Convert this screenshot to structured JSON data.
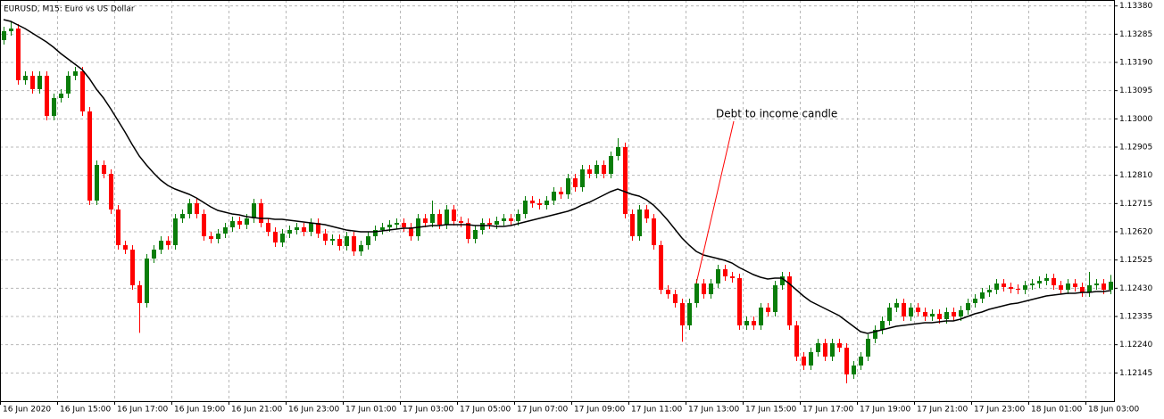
{
  "chart_data": {
    "type": "candlestick",
    "title": "EURUSD, M15:  Euro vs US Dollar",
    "annotation": "Debt to income candle",
    "up_color": "#0a7d0a",
    "down_color": "#ff0000",
    "grid": true,
    "ylim": [
      1.1205,
      1.134
    ],
    "yticks": [
      {
        "value": 1.1338,
        "label": "1.13380"
      },
      1.13285,
      {
        "value": 1.1319,
        "label": "1.13190"
      },
      1.13095,
      {
        "value": 1.13,
        "label": "1.13000"
      },
      1.12905,
      {
        "value": 1.1281,
        "label": "1.12810"
      },
      1.12715,
      {
        "value": 1.1262,
        "label": "1.12620"
      },
      1.12525,
      {
        "value": 1.1243,
        "label": "1.12430"
      },
      1.12335,
      {
        "value": 1.1224,
        "label": "1.12240"
      },
      1.12145
    ],
    "categories": [
      "16 Jun 2020",
      null,
      null,
      null,
      null,
      null,
      null,
      null,
      "16 Jun 15:00",
      null,
      null,
      null,
      null,
      null,
      null,
      null,
      "16 Jun 17:00",
      null,
      null,
      null,
      null,
      null,
      null,
      null,
      "16 Jun 19:00",
      null,
      null,
      null,
      null,
      null,
      null,
      null,
      "16 Jun 21:00",
      null,
      null,
      null,
      null,
      null,
      null,
      null,
      "16 Jun 23:00",
      null,
      null,
      null,
      null,
      null,
      null,
      null,
      "17 Jun 01:00",
      null,
      null,
      null,
      null,
      null,
      null,
      null,
      "17 Jun 03:00",
      null,
      null,
      null,
      null,
      null,
      null,
      null,
      "17 Jun 05:00",
      null,
      null,
      null,
      null,
      null,
      null,
      null,
      "17 Jun 07:00",
      null,
      null,
      null,
      null,
      null,
      null,
      null,
      "17 Jun 09:00",
      null,
      null,
      null,
      null,
      null,
      null,
      null,
      "17 Jun 11:00",
      null,
      null,
      null,
      null,
      null,
      null,
      null,
      "17 Jun 13:00",
      null,
      null,
      null,
      null,
      null,
      null,
      null,
      "17 Jun 15:00",
      null,
      null,
      null,
      null,
      null,
      null,
      null,
      "17 Jun 17:00",
      null,
      null,
      null,
      null,
      null,
      null,
      null,
      "17 Jun 19:00",
      null,
      null,
      null,
      null,
      null,
      null,
      null,
      "17 Jun 21:00",
      null,
      null,
      null,
      null,
      null,
      null,
      null,
      "17 Jun 23:00",
      null,
      null,
      null,
      null,
      null,
      null,
      null,
      "18 Jun 01:00",
      null,
      null,
      null,
      null,
      null,
      null,
      null,
      "18 Jun 03:00",
      null,
      null,
      null
    ],
    "open": [
      1.13265,
      1.13295,
      1.13304,
      1.1313,
      1.13145,
      1.131,
      1.13145,
      1.1301,
      1.1307,
      1.13085,
      1.13145,
      1.1316,
      1.13025,
      1.12725,
      1.12845,
      1.12815,
      1.12695,
      1.12575,
      1.1256,
      1.1244,
      1.1238,
      1.1253,
      1.1256,
      1.1259,
      1.12575,
      1.12665,
      1.1268,
      1.12716,
      1.1268,
      1.12605,
      1.12596,
      1.12614,
      1.12635,
      1.12656,
      1.12644,
      1.12665,
      1.12716,
      1.1265,
      1.1262,
      1.12584,
      1.12614,
      1.12626,
      1.12635,
      1.1262,
      1.1265,
      1.12614,
      1.1259,
      1.12596,
      1.12572,
      1.12605,
      1.12554,
      1.12575,
      1.12605,
      1.12626,
      1.12635,
      1.12644,
      1.1265,
      1.12635,
      1.12605,
      1.12665,
      1.1265,
      1.1268,
      1.12644,
      1.12695,
      1.12656,
      1.1265,
      1.12596,
      1.12626,
      1.1265,
      1.12644,
      1.12656,
      1.12665,
      1.12656,
      1.1268,
      1.12725,
      1.12716,
      1.1271,
      1.12725,
      1.12755,
      1.12746,
      1.128,
      1.1277,
      1.1283,
      1.12815,
      1.12845,
      1.12815,
      1.12875,
      1.12905,
      1.1268,
      1.12605,
      1.12695,
      1.12665,
      1.12575,
      1.12425,
      1.1241,
      1.1238,
      1.12305,
      1.1238,
      1.12446,
      1.1241,
      1.12446,
      1.12494,
      1.1247,
      1.12464,
      1.12305,
      1.1232,
      1.12305,
      1.12365,
      1.1235,
      1.1244,
      1.1247,
      1.12305,
      1.122,
      1.1217,
      1.12215,
      1.12245,
      1.122,
      1.12245,
      1.1223,
      1.1214,
      1.1217,
      1.122,
      1.1226,
      1.1229,
      1.1232,
      1.12365,
      1.1238,
      1.12335,
      1.12365,
      1.1235,
      1.12335,
      1.12344,
      1.12326,
      1.1235,
      1.12335,
      1.12356,
      1.1238,
      1.12395,
      1.12416,
      1.12425,
      1.12446,
      1.12434,
      1.12428,
      1.12425,
      1.1244,
      1.12446,
      1.12455,
      1.12464,
      1.1244,
      1.12425,
      1.12446,
      1.12434,
      1.12416,
      1.1244,
      1.12446,
      1.12425
    ],
    "high": [
      1.1331,
      1.1333,
      1.13319,
      1.1316,
      1.1316,
      1.1316,
      1.1316,
      1.13085,
      1.131,
      1.1316,
      1.13175,
      1.13175,
      1.1304,
      1.1286,
      1.1286,
      1.1283,
      1.1271,
      1.1259,
      1.12575,
      1.12455,
      1.12545,
      1.12575,
      1.12605,
      1.12605,
      1.1268,
      1.12695,
      1.12731,
      1.12731,
      1.12695,
      1.1262,
      1.12629,
      1.1265,
      1.12671,
      1.12671,
      1.1268,
      1.12731,
      1.12731,
      1.12665,
      1.12635,
      1.12629,
      1.12641,
      1.1265,
      1.1265,
      1.12665,
      1.12665,
      1.12629,
      1.12611,
      1.12611,
      1.1262,
      1.1262,
      1.1259,
      1.1262,
      1.12641,
      1.1265,
      1.12659,
      1.12665,
      1.12665,
      1.1265,
      1.1268,
      1.1268,
      1.12725,
      1.12695,
      1.1271,
      1.1271,
      1.12671,
      1.12665,
      1.12641,
      1.12665,
      1.12665,
      1.12671,
      1.1268,
      1.1268,
      1.12695,
      1.1274,
      1.1274,
      1.12731,
      1.1274,
      1.1277,
      1.1277,
      1.12815,
      1.12815,
      1.12845,
      1.12845,
      1.1286,
      1.1286,
      1.1289,
      1.12935,
      1.1292,
      1.12695,
      1.1271,
      1.1271,
      1.1268,
      1.1259,
      1.1244,
      1.12425,
      1.12395,
      1.12395,
      1.12461,
      1.12461,
      1.12461,
      1.12509,
      1.12509,
      1.12485,
      1.12479,
      1.12335,
      1.12335,
      1.1238,
      1.1238,
      1.12455,
      1.12485,
      1.12485,
      1.1232,
      1.12215,
      1.1223,
      1.1226,
      1.1226,
      1.1226,
      1.1226,
      1.12245,
      1.12185,
      1.12215,
      1.12275,
      1.12305,
      1.12335,
      1.1238,
      1.12395,
      1.12395,
      1.1238,
      1.1238,
      1.12365,
      1.12359,
      1.12359,
      1.12365,
      1.12365,
      1.12371,
      1.12395,
      1.1241,
      1.12431,
      1.1244,
      1.12461,
      1.12461,
      1.12449,
      1.12443,
      1.12455,
      1.12461,
      1.1247,
      1.12479,
      1.12479,
      1.12455,
      1.12461,
      1.12461,
      1.12449,
      1.12485,
      1.12461,
      1.12461,
      1.12475
    ],
    "low": [
      1.1325,
      1.1328,
      1.13115,
      1.13115,
      1.13085,
      1.13085,
      1.12995,
      1.12995,
      1.13055,
      1.1307,
      1.1313,
      1.1301,
      1.1271,
      1.1271,
      1.128,
      1.1268,
      1.1256,
      1.12545,
      1.12425,
      1.1228,
      1.12365,
      1.12515,
      1.12545,
      1.1256,
      1.1256,
      1.1265,
      1.12665,
      1.12665,
      1.1259,
      1.12581,
      1.12581,
      1.12599,
      1.1262,
      1.12629,
      1.12629,
      1.1265,
      1.12635,
      1.12605,
      1.12569,
      1.12569,
      1.12599,
      1.12611,
      1.12605,
      1.12605,
      1.12599,
      1.12575,
      1.12575,
      1.12557,
      1.12557,
      1.12539,
      1.12539,
      1.1256,
      1.1259,
      1.12611,
      1.1262,
      1.12629,
      1.1262,
      1.1259,
      1.1259,
      1.12635,
      1.12635,
      1.12629,
      1.12629,
      1.12641,
      1.12635,
      1.12581,
      1.12581,
      1.12611,
      1.12629,
      1.12629,
      1.12641,
      1.12641,
      1.12641,
      1.12665,
      1.12701,
      1.12695,
      1.12695,
      1.1271,
      1.12731,
      1.12731,
      1.12755,
      1.12755,
      1.128,
      1.128,
      1.128,
      1.128,
      1.1286,
      1.12665,
      1.1259,
      1.1259,
      1.1265,
      1.1256,
      1.1241,
      1.12395,
      1.12365,
      1.1225,
      1.1229,
      1.12365,
      1.12395,
      1.12395,
      1.12431,
      1.12455,
      1.12449,
      1.1229,
      1.1229,
      1.1229,
      1.1229,
      1.12335,
      1.12335,
      1.12425,
      1.1229,
      1.12185,
      1.12155,
      1.12155,
      1.122,
      1.12185,
      1.12185,
      1.12215,
      1.1211,
      1.12125,
      1.12155,
      1.12185,
      1.12245,
      1.12275,
      1.12305,
      1.1235,
      1.1232,
      1.1232,
      1.12335,
      1.1232,
      1.1232,
      1.12311,
      1.12311,
      1.1232,
      1.1232,
      1.12341,
      1.12365,
      1.1238,
      1.12401,
      1.1241,
      1.12419,
      1.12413,
      1.1241,
      1.1241,
      1.12425,
      1.12431,
      1.1244,
      1.12425,
      1.1241,
      1.1241,
      1.12419,
      1.12401,
      1.12401,
      1.12425,
      1.1241,
      1.1241
    ],
    "close": [
      1.13295,
      1.13304,
      1.1313,
      1.13145,
      1.131,
      1.13145,
      1.1301,
      1.1307,
      1.13085,
      1.13145,
      1.1316,
      1.13025,
      1.12725,
      1.12845,
      1.12815,
      1.12695,
      1.12575,
      1.1256,
      1.1244,
      1.1238,
      1.1253,
      1.1256,
      1.1259,
      1.12575,
      1.12665,
      1.1268,
      1.12716,
      1.1268,
      1.12605,
      1.12596,
      1.12614,
      1.12635,
      1.12656,
      1.12644,
      1.12665,
      1.12716,
      1.1265,
      1.1262,
      1.12584,
      1.12614,
      1.12626,
      1.12635,
      1.1262,
      1.1265,
      1.12614,
      1.1259,
      1.12596,
      1.12572,
      1.12605,
      1.12554,
      1.12575,
      1.12605,
      1.12626,
      1.12635,
      1.12644,
      1.1265,
      1.12635,
      1.12605,
      1.12665,
      1.1265,
      1.1268,
      1.12644,
      1.12695,
      1.12656,
      1.1265,
      1.12596,
      1.12626,
      1.1265,
      1.12644,
      1.12656,
      1.12665,
      1.12656,
      1.1268,
      1.12725,
      1.12716,
      1.1271,
      1.12725,
      1.12755,
      1.12746,
      1.128,
      1.1277,
      1.1283,
      1.12815,
      1.12845,
      1.12815,
      1.12875,
      1.12905,
      1.1268,
      1.12605,
      1.12695,
      1.12665,
      1.12575,
      1.12425,
      1.1241,
      1.1238,
      1.12305,
      1.1238,
      1.12446,
      1.1241,
      1.12446,
      1.12494,
      1.1247,
      1.12464,
      1.12305,
      1.1232,
      1.12305,
      1.12365,
      1.1235,
      1.1244,
      1.1247,
      1.12305,
      1.122,
      1.1217,
      1.12215,
      1.12245,
      1.122,
      1.12245,
      1.1223,
      1.1214,
      1.1217,
      1.122,
      1.1226,
      1.1229,
      1.1232,
      1.12365,
      1.1238,
      1.12335,
      1.12365,
      1.1235,
      1.12335,
      1.12344,
      1.12326,
      1.1235,
      1.12335,
      1.12356,
      1.1238,
      1.12395,
      1.12416,
      1.12425,
      1.12446,
      1.12434,
      1.12428,
      1.12425,
      1.1244,
      1.12446,
      1.12455,
      1.12464,
      1.1244,
      1.12425,
      1.12446,
      1.12434,
      1.12416,
      1.1244,
      1.12446,
      1.12425,
      1.12452
    ],
    "ma": {
      "color": "#000000",
      "values": [
        1.13334,
        1.13328,
        1.13316,
        1.13304,
        1.13289,
        1.13274,
        1.13259,
        1.13241,
        1.1322,
        1.13202,
        1.13184,
        1.13166,
        1.13136,
        1.131,
        1.1307,
        1.13034,
        1.12995,
        1.12956,
        1.12914,
        1.12875,
        1.12845,
        1.12818,
        1.12794,
        1.12776,
        1.12764,
        1.12755,
        1.12746,
        1.12734,
        1.12719,
        1.12704,
        1.12692,
        1.12686,
        1.1268,
        1.12677,
        1.12671,
        1.12668,
        1.12665,
        1.12665,
        1.12662,
        1.12662,
        1.12659,
        1.12656,
        1.12653,
        1.1265,
        1.12647,
        1.12644,
        1.12638,
        1.12632,
        1.12626,
        1.12623,
        1.1262,
        1.1262,
        1.1262,
        1.12623,
        1.12626,
        1.12629,
        1.12632,
        1.12632,
        1.12635,
        1.12638,
        1.12641,
        1.12641,
        1.12644,
        1.12644,
        1.12644,
        1.12644,
        1.12641,
        1.12641,
        1.12641,
        1.12638,
        1.12638,
        1.12641,
        1.12647,
        1.12653,
        1.12659,
        1.12665,
        1.12671,
        1.12677,
        1.12683,
        1.12689,
        1.12698,
        1.1271,
        1.12719,
        1.12731,
        1.12743,
        1.12755,
        1.12764,
        1.12755,
        1.12746,
        1.1274,
        1.12728,
        1.1271,
        1.12686,
        1.12659,
        1.12629,
        1.12599,
        1.12575,
        1.12554,
        1.12542,
        1.12536,
        1.1253,
        1.12524,
        1.12515,
        1.125,
        1.12488,
        1.12476,
        1.12467,
        1.12461,
        1.12464,
        1.12464,
        1.12446,
        1.12425,
        1.12404,
        1.12386,
        1.12374,
        1.12362,
        1.1235,
        1.12338,
        1.1232,
        1.12302,
        1.12284,
        1.12278,
        1.12284,
        1.1229,
        1.12296,
        1.12302,
        1.12305,
        1.12308,
        1.12311,
        1.12314,
        1.12314,
        1.12317,
        1.1232,
        1.1232,
        1.12326,
        1.12335,
        1.12344,
        1.1235,
        1.12359,
        1.12365,
        1.12371,
        1.12377,
        1.1238,
        1.12386,
        1.12392,
        1.12398,
        1.12404,
        1.12407,
        1.1241,
        1.12413,
        1.12413,
        1.12416,
        1.12416,
        1.12419,
        1.12419,
        1.12422
      ]
    }
  }
}
